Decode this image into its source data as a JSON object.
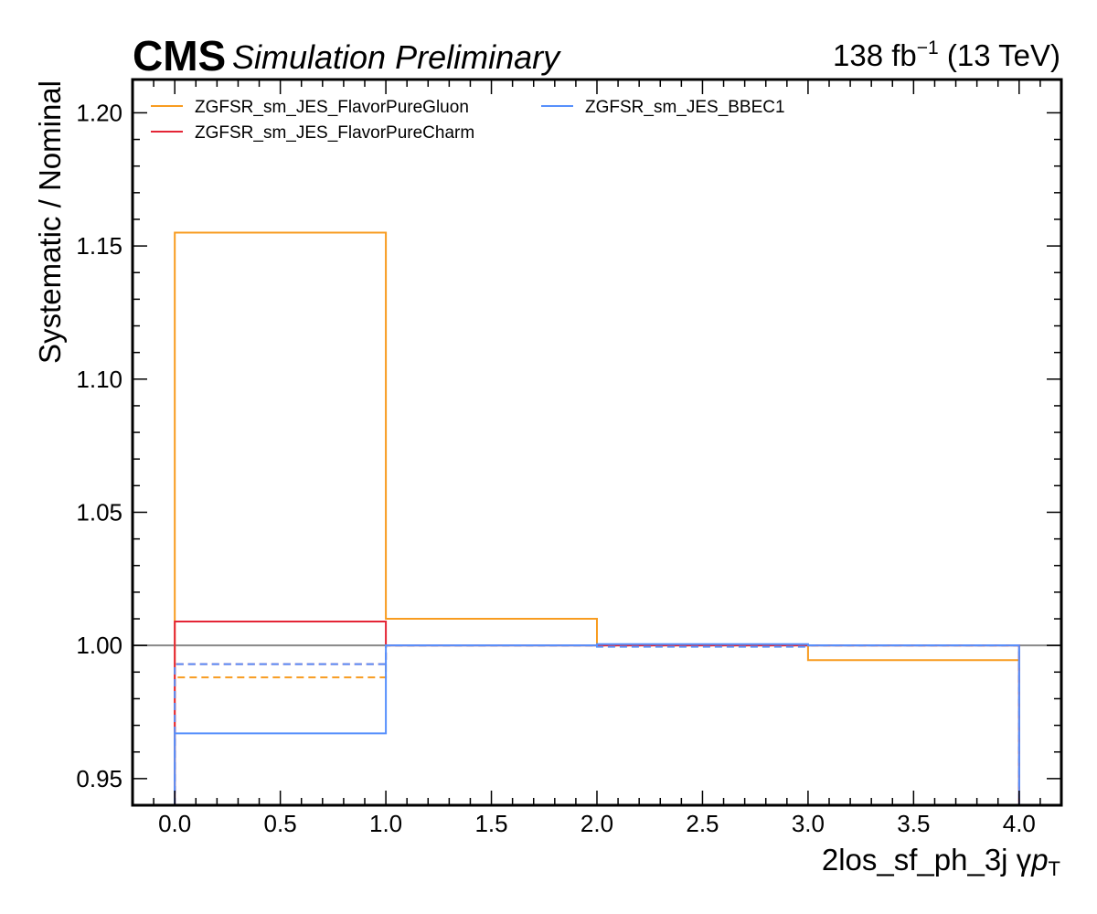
{
  "header": {
    "cms": "CMS",
    "subtitle": "Simulation Preliminary",
    "lumi_value": "138 fb",
    "lumi_exp": "−1",
    "lumi_energy": " (13 TeV)"
  },
  "chart_data": {
    "type": "line",
    "ylabel": "Systematic / Nominal",
    "xlabel_main": "2los_sf_ph_3j   γ",
    "xlabel_var": "p",
    "xlabel_sub": "T",
    "xlim": [
      -0.2,
      4.2
    ],
    "ylim": [
      0.94,
      1.2125
    ],
    "xticks": [
      "0.0",
      "0.5",
      "1.0",
      "1.5",
      "2.0",
      "2.5",
      "3.0",
      "3.5",
      "4.0"
    ],
    "xtick_values": [
      0,
      0.5,
      1,
      1.5,
      2,
      2.5,
      3,
      3.5,
      4
    ],
    "yticks": [
      "0.95",
      "1.00",
      "1.05",
      "1.10",
      "1.15",
      "1.20"
    ],
    "ytick_values": [
      0.95,
      1.0,
      1.05,
      1.1,
      1.15,
      1.2
    ],
    "bin_edges": [
      0,
      1,
      2,
      3,
      4
    ],
    "reference_line": 1.0,
    "legend_position": "upper-left",
    "series": [
      {
        "name": "ZGFSR_sm_JES_FlavorPureGluon",
        "color": "#f89c20",
        "up": [
          1.155,
          1.01,
          1.0003,
          0.9945
        ],
        "down": [
          0.988,
          1.0,
          1.0,
          1.0
        ]
      },
      {
        "name": "ZGFSR_sm_JES_FlavorPureCharm",
        "color": "#e42536",
        "up": [
          1.009,
          1.0,
          1.0,
          1.0
        ],
        "down": [
          0.993,
          1.0,
          1.0,
          1.0
        ]
      },
      {
        "name": "ZGFSR_sm_JES_BBEC1",
        "color": "#5790fc",
        "up": [
          0.967,
          1.0,
          1.0005,
          1.0
        ],
        "down": [
          0.993,
          1.0,
          0.9995,
          1.0
        ]
      }
    ]
  }
}
